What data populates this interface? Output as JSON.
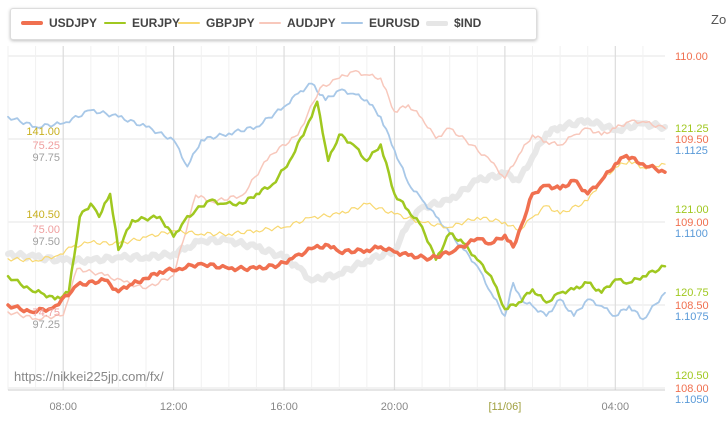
{
  "zoom_label": "Zo",
  "watermark": "https://nikkei225jp.com/fx/",
  "chart_data": {
    "type": "line",
    "title": "",
    "x_tick_labels": [
      "08:00",
      "12:00",
      "16:00",
      "20:00",
      "[11/06]",
      "04:00"
    ],
    "x_range_hours": [
      6.0,
      29.8
    ],
    "x_tick_hours": [
      8,
      12,
      16,
      20,
      24,
      28
    ],
    "axes": {
      "USDJPY": {
        "ticks": [
          110.0,
          109.5,
          109.0,
          108.5,
          108.0
        ],
        "labels": [
          "110.00",
          "109.50",
          "109.00",
          "108.50",
          "108.00"
        ],
        "color": "#f07050"
      },
      "EURJPY": {
        "ticks": [
          121.25,
          121.0,
          120.75,
          120.5
        ],
        "labels": [
          "121.25",
          "121.00",
          "120.75",
          "120.50"
        ],
        "color": "#a0c820"
      },
      "EURUSD": {
        "ticks": [
          1.1125,
          1.11,
          1.1075,
          1.105
        ],
        "labels": [
          "1.1125",
          "1.1100",
          "1.1075",
          "1.1050"
        ],
        "color": "#5a9ad8"
      },
      "GBPJPY": {
        "ticks": [
          141.0,
          140.5
        ],
        "labels": [
          "141.00",
          "140.50"
        ],
        "color": "#d8c030"
      },
      "AUDJPY": {
        "ticks": [
          75.25,
          75.0,
          74.75
        ],
        "labels": [
          "75.25",
          "75.00",
          "74.75"
        ],
        "color": "#f0a0a0"
      },
      "IND": {
        "ticks": [
          97.75,
          97.5,
          97.25
        ],
        "labels": [
          "97.75",
          "97.50",
          "97.25"
        ],
        "color": "#aaaaaa"
      }
    },
    "series": [
      {
        "name": "USDJPY",
        "color": "#f07050",
        "width": 3.5,
        "axis": "USDJPY",
        "x": [
          6.0,
          6.8,
          7.6,
          8.3,
          8.5,
          9.5,
          10.0,
          10.4,
          11.0,
          11.5,
          12.2,
          13.0,
          14.0,
          15.0,
          15.8,
          16.3,
          17.0,
          17.6,
          18.0,
          19.0,
          19.5,
          20.0,
          20.5,
          21.3,
          22.2,
          23.0,
          23.5,
          24.0,
          24.3,
          24.6,
          25.0,
          25.5,
          26.0,
          26.5,
          27.0,
          27.5,
          28.0,
          28.4,
          29.0,
          29.8
        ],
        "values": [
          108.5,
          108.46,
          108.48,
          108.58,
          108.62,
          108.65,
          108.58,
          108.62,
          108.66,
          108.7,
          108.72,
          108.75,
          108.72,
          108.72,
          108.74,
          108.78,
          108.84,
          108.86,
          108.82,
          108.83,
          108.85,
          108.82,
          108.8,
          108.78,
          108.83,
          108.9,
          108.87,
          108.92,
          108.85,
          108.98,
          109.17,
          109.22,
          109.2,
          109.25,
          109.17,
          109.25,
          109.35,
          109.4,
          109.35,
          109.3
        ]
      },
      {
        "name": "EURJPY",
        "color": "#a0c820",
        "width": 2.5,
        "axis": "EURJPY",
        "x": [
          6.0,
          6.8,
          7.2,
          7.7,
          8.2,
          8.6,
          9.0,
          9.3,
          9.7,
          10.0,
          10.5,
          11.5,
          12.0,
          12.4,
          12.8,
          13.3,
          13.8,
          14.5,
          15.0,
          15.6,
          16.2,
          16.8,
          17.2,
          17.6,
          18.0,
          18.5,
          19.0,
          19.5,
          20.0,
          20.5,
          21.0,
          21.5,
          22.0,
          22.5,
          23.0,
          23.5,
          24.0,
          24.5,
          25.0,
          25.5,
          26.0,
          26.5,
          27.0,
          27.5,
          28.0,
          28.5,
          29.0,
          29.8
        ],
        "values": [
          120.8,
          120.76,
          120.75,
          120.73,
          120.75,
          120.98,
          121.02,
          120.98,
          121.05,
          120.88,
          120.97,
          120.98,
          120.92,
          120.97,
          121.0,
          121.03,
          121.02,
          121.02,
          121.05,
          121.08,
          121.15,
          121.25,
          121.33,
          121.15,
          121.23,
          121.2,
          121.15,
          121.2,
          121.05,
          121.0,
          120.95,
          120.85,
          120.93,
          120.9,
          120.85,
          120.8,
          120.7,
          120.72,
          120.76,
          120.72,
          120.75,
          120.76,
          120.78,
          120.75,
          120.79,
          120.78,
          120.8,
          120.83
        ]
      },
      {
        "name": "GBPJPY",
        "color": "#f8d870",
        "width": 1.2,
        "axis": "GBPJPY",
        "x": [
          6.0,
          7.0,
          7.8,
          8.3,
          9.0,
          10.0,
          11.0,
          12.0,
          13.0,
          14.0,
          15.0,
          16.0,
          17.0,
          18.0,
          19.0,
          20.0,
          21.0,
          22.0,
          23.0,
          24.0,
          24.5,
          25.0,
          25.5,
          26.0,
          27.0,
          27.5,
          28.0,
          28.5,
          29.0,
          29.8
        ],
        "values": [
          140.23,
          140.22,
          140.25,
          140.3,
          140.33,
          140.32,
          140.36,
          140.4,
          140.38,
          140.38,
          140.4,
          140.42,
          140.48,
          140.5,
          140.56,
          140.5,
          140.45,
          140.42,
          140.48,
          140.45,
          140.4,
          140.48,
          140.55,
          140.5,
          140.58,
          140.7,
          140.78,
          140.82,
          140.78,
          140.8
        ]
      },
      {
        "name": "AUDJPY",
        "color": "#f8c8bc",
        "width": 1.5,
        "axis": "AUDJPY",
        "x": [
          6.0,
          7.0,
          8.0,
          8.5,
          9.5,
          10.2,
          11.0,
          12.0,
          12.8,
          13.4,
          14.5,
          15.5,
          16.5,
          17.3,
          18.0,
          18.5,
          19.0,
          19.5,
          20.0,
          20.5,
          21.0,
          21.5,
          22.0,
          22.8,
          23.5,
          24.0,
          24.5,
          25.0,
          25.5,
          26.0,
          26.5,
          27.0,
          27.5,
          28.0,
          28.5,
          29.0,
          29.8
        ],
        "values": [
          74.75,
          74.73,
          74.74,
          74.88,
          74.86,
          74.84,
          74.82,
          74.86,
          75.1,
          75.08,
          75.1,
          75.22,
          75.28,
          75.42,
          75.45,
          75.47,
          75.46,
          75.45,
          75.35,
          75.37,
          75.33,
          75.27,
          75.3,
          75.25,
          75.2,
          75.15,
          75.22,
          75.28,
          75.26,
          75.25,
          75.28,
          75.3,
          75.28,
          75.3,
          75.32,
          75.32,
          75.3
        ]
      },
      {
        "name": "EURUSD",
        "color": "#a8c8e8",
        "width": 1.8,
        "axis": "EURUSD",
        "x": [
          6.0,
          7.0,
          8.0,
          9.0,
          10.0,
          11.0,
          12.0,
          12.5,
          13.0,
          14.0,
          15.0,
          16.0,
          16.5,
          17.0,
          17.5,
          18.0,
          18.5,
          19.0,
          19.5,
          20.0,
          20.5,
          21.0,
          21.5,
          22.0,
          22.5,
          23.0,
          23.5,
          24.0,
          24.3,
          24.6,
          25.0,
          25.5,
          26.0,
          26.5,
          27.0,
          27.5,
          28.0,
          28.5,
          29.0,
          29.8
        ],
        "values": [
          1.1135,
          1.1132,
          1.1133,
          1.1137,
          1.1135,
          1.1132,
          1.1128,
          1.112,
          1.1128,
          1.113,
          1.1132,
          1.1138,
          1.1142,
          1.1145,
          1.114,
          1.1143,
          1.1142,
          1.114,
          1.1135,
          1.1125,
          1.1115,
          1.111,
          1.1105,
          1.11,
          1.1095,
          1.109,
          1.1082,
          1.1075,
          1.1085,
          1.108,
          1.1078,
          1.1075,
          1.108,
          1.1075,
          1.108,
          1.1078,
          1.1075,
          1.1078,
          1.1074,
          1.1082
        ]
      },
      {
        "name": "$IND",
        "color": "#e6e6e6",
        "width": 6.0,
        "axis": "IND",
        "x": [
          6.0,
          7.0,
          8.0,
          9.0,
          10.0,
          11.0,
          12.0,
          12.5,
          13.0,
          14.0,
          15.0,
          16.0,
          16.5,
          17.0,
          18.0,
          19.0,
          20.0,
          20.5,
          21.0,
          22.0,
          23.0,
          24.0,
          24.5,
          25.0,
          25.5,
          26.0,
          27.0,
          28.0,
          29.0,
          29.8
        ],
        "values": [
          97.46,
          97.45,
          97.44,
          97.44,
          97.45,
          97.45,
          97.46,
          97.48,
          97.5,
          97.5,
          97.48,
          97.45,
          97.42,
          97.38,
          97.4,
          97.44,
          97.47,
          97.55,
          97.6,
          97.62,
          97.68,
          97.7,
          97.68,
          97.75,
          97.82,
          97.84,
          97.86,
          97.83,
          97.85,
          97.84
        ]
      }
    ],
    "legend": [
      "USDJPY",
      "EURJPY",
      "GBPJPY",
      "AUDJPY",
      "EURUSD",
      "$IND"
    ],
    "legend_position": "top-left",
    "grid": true
  }
}
